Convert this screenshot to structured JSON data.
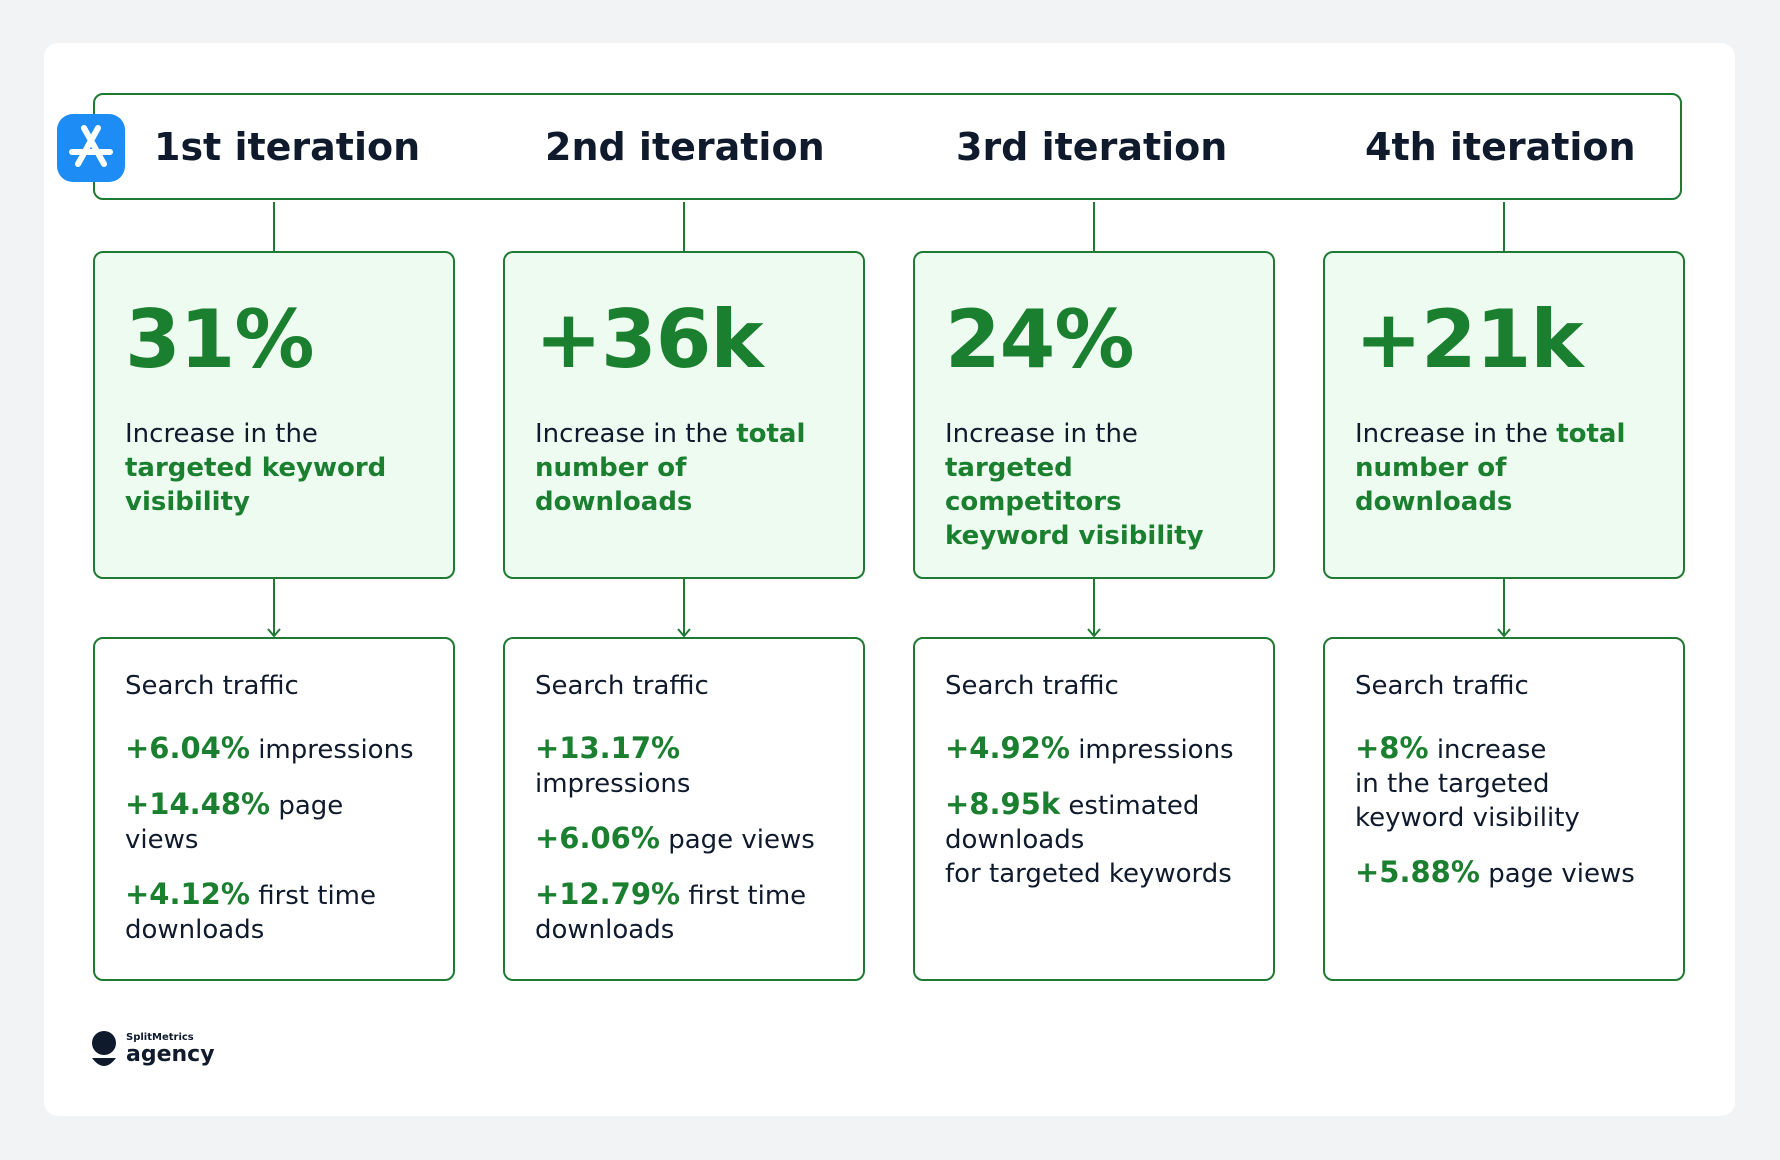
{
  "header": {
    "iterations": [
      "1st iteration",
      "2nd iteration",
      "3rd iteration",
      "4th iteration"
    ]
  },
  "cards": [
    {
      "headline": "31%",
      "description_plain": "Increase in the",
      "description_highlight": "targeted keyword visibility",
      "traffic_title": "Search traffic",
      "metrics": [
        {
          "value": "+6.04%",
          "text": "impressions"
        },
        {
          "value": "+14.48%",
          "text": "page views"
        },
        {
          "value": "+4.12%",
          "text": "first time\ndownloads"
        }
      ]
    },
    {
      "headline": "+36k",
      "description_plain": "Increase in the",
      "description_highlight": "total number of downloads",
      "traffic_title": "Search traffic",
      "metrics": [
        {
          "value": "+13.17%",
          "text": "impressions"
        },
        {
          "value": "+6.06%",
          "text": "page views"
        },
        {
          "value": "+12.79%",
          "text": "first time\ndownloads"
        }
      ]
    },
    {
      "headline": "24%",
      "description_plain": "Increase in the",
      "description_highlight": "targeted competitors keyword visibility",
      "traffic_title": "Search traffic",
      "metrics": [
        {
          "value": "+4.92%",
          "text": "impressions"
        },
        {
          "value": "+8.95k",
          "text": "estimated\ndownloads\nfor targeted keywords"
        }
      ]
    },
    {
      "headline": "+21k",
      "description_plain": "Increase in the",
      "description_highlight": "total number of downloads",
      "traffic_title": "Search traffic",
      "metrics": [
        {
          "value": "+8%",
          "text": "increase\nin the targeted\nkeyword visibility"
        },
        {
          "value": "+5.88%",
          "text": "page views"
        }
      ]
    }
  ],
  "logo": {
    "brand": "SplitMetrics",
    "product": "agency"
  }
}
